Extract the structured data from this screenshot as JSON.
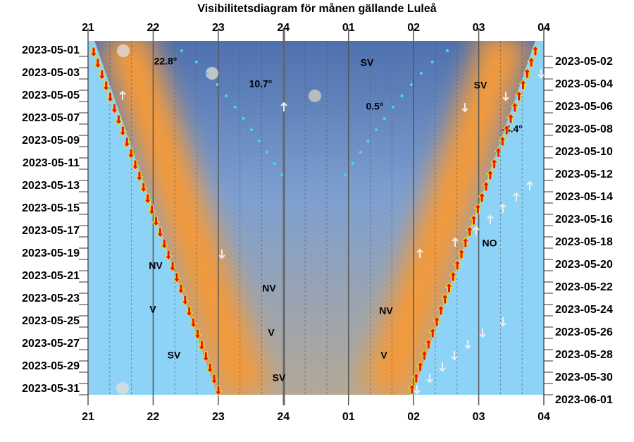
{
  "title": "Visibilitetsdiagram för månen gällande Luleå",
  "hours_top": [
    "21",
    "22",
    "23",
    "24",
    "01",
    "02",
    "03",
    "04"
  ],
  "hours_bottom": [
    "21",
    "22",
    "23",
    "24",
    "01",
    "02",
    "03",
    "04"
  ],
  "dates_left": [
    "2023-05-01",
    "2023-05-03",
    "2023-05-05",
    "2023-05-07",
    "2023-05-09",
    "2023-05-11",
    "2023-05-13",
    "2023-05-15",
    "2023-05-17",
    "2023-05-19",
    "2023-05-21",
    "2023-05-23",
    "2023-05-25",
    "2023-05-27",
    "2023-05-29",
    "2023-05-31"
  ],
  "dates_right": [
    "2023-05-02",
    "2023-05-04",
    "2023-05-06",
    "2023-05-08",
    "2023-05-10",
    "2023-05-12",
    "2023-05-14",
    "2023-05-16",
    "2023-05-18",
    "2023-05-20",
    "2023-05-22",
    "2023-05-24",
    "2023-05-26",
    "2023-05-28",
    "2023-05-30",
    "2023-06-01"
  ],
  "annotations": [
    "22.8°",
    "10.7°",
    "0.5°",
    "-4.4°",
    "SV",
    "SV",
    "NO",
    "NV",
    "NV",
    "NV",
    "V",
    "V",
    "V",
    "SV",
    "SV"
  ]
}
